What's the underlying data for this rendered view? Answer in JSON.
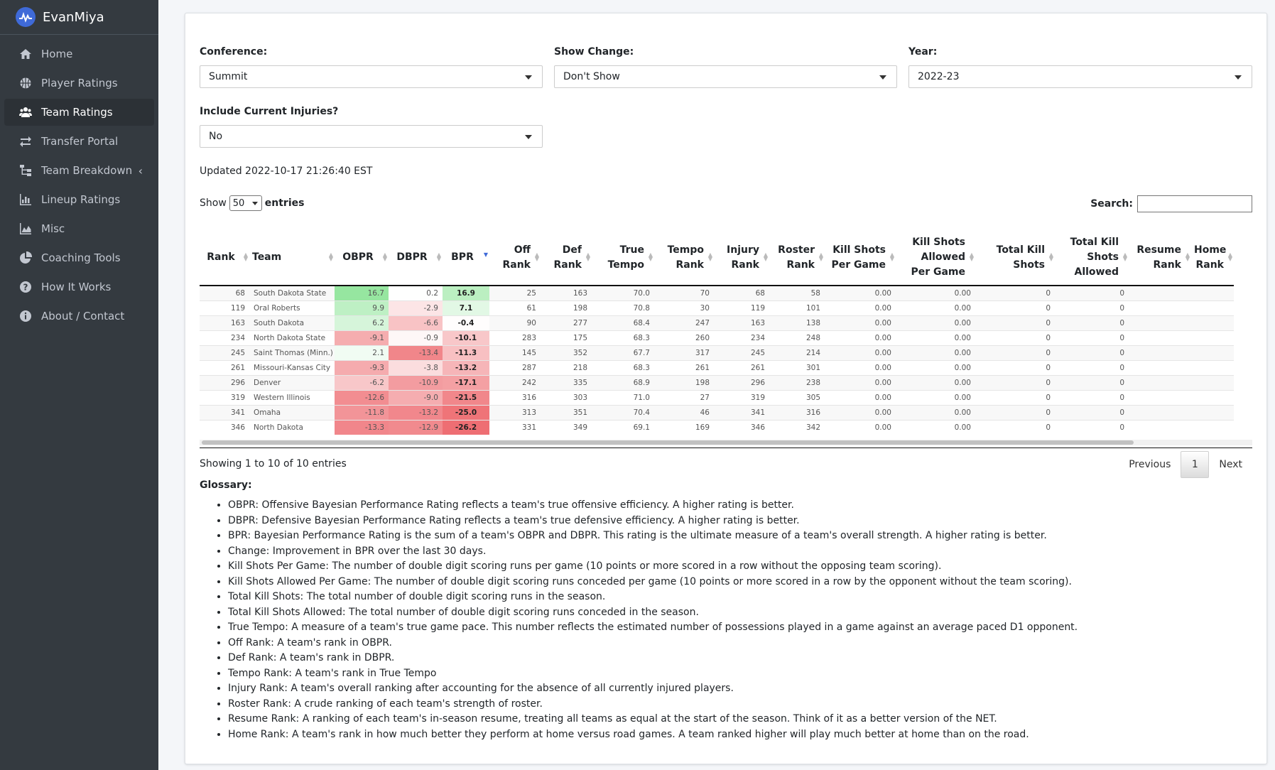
{
  "brand": {
    "name": "EvanMiya"
  },
  "sidebar": {
    "items": [
      {
        "label": "Home",
        "icon": "home-icon",
        "active": false
      },
      {
        "label": "Player Ratings",
        "icon": "basketball-icon",
        "active": false
      },
      {
        "label": "Team Ratings",
        "icon": "users-icon",
        "active": true
      },
      {
        "label": "Transfer Portal",
        "icon": "exchange-icon",
        "active": false
      },
      {
        "label": "Team Breakdown",
        "icon": "sitemap-icon",
        "active": false
      },
      {
        "label": "Lineup Ratings",
        "icon": "bar-chart-icon",
        "active": false
      },
      {
        "label": "Misc",
        "icon": "area-chart-icon",
        "active": false
      },
      {
        "label": "Coaching Tools",
        "icon": "pie-chart-icon",
        "active": false
      },
      {
        "label": "How It Works",
        "icon": "question-circle-icon",
        "active": false
      },
      {
        "label": "About / Contact",
        "icon": "info-circle-icon",
        "active": false
      }
    ]
  },
  "filters": {
    "conference": {
      "label": "Conference:",
      "value": "Summit"
    },
    "show_change": {
      "label": "Show Change:",
      "value": "Don't Show"
    },
    "year": {
      "label": "Year:",
      "value": "2022-23"
    },
    "injuries": {
      "label": "Include Current Injuries?",
      "value": "No"
    }
  },
  "updated": "Updated 2022-10-17 21:26:40 EST",
  "table_controls": {
    "show_label": "Show",
    "entries_value": "50",
    "entries_label": "entries",
    "search_label": "Search:"
  },
  "table": {
    "columns": [
      "Rank",
      "Team",
      "OBPR",
      "DBPR",
      "BPR",
      "Off Rank",
      "Def Rank",
      "True Tempo",
      "Tempo Rank",
      "Injury Rank",
      "Roster Rank",
      "Kill Shots Per Game",
      "Kill Shots Allowed Per Game",
      "Total Kill Shots",
      "Total Kill Shots Allowed",
      "Resume Rank",
      "Home Rank"
    ],
    "rows": [
      [
        "68",
        "South Dakota State",
        "16.7",
        "0.2",
        "16.9",
        "25",
        "163",
        "70.0",
        "70",
        "68",
        "58",
        "0.00",
        "0.00",
        "0",
        "0",
        "",
        ""
      ],
      [
        "119",
        "Oral Roberts",
        "9.9",
        "-2.9",
        "7.1",
        "61",
        "198",
        "70.8",
        "30",
        "119",
        "101",
        "0.00",
        "0.00",
        "0",
        "0",
        "",
        ""
      ],
      [
        "163",
        "South Dakota",
        "6.2",
        "-6.6",
        "-0.4",
        "90",
        "277",
        "68.4",
        "247",
        "163",
        "138",
        "0.00",
        "0.00",
        "0",
        "0",
        "",
        ""
      ],
      [
        "234",
        "North Dakota State",
        "-9.1",
        "-0.9",
        "-10.1",
        "283",
        "175",
        "68.3",
        "260",
        "234",
        "248",
        "0.00",
        "0.00",
        "0",
        "0",
        "",
        ""
      ],
      [
        "245",
        "Saint Thomas (Minn.)",
        "2.1",
        "-13.4",
        "-11.3",
        "145",
        "352",
        "67.7",
        "317",
        "245",
        "214",
        "0.00",
        "0.00",
        "0",
        "0",
        "",
        ""
      ],
      [
        "261",
        "Missouri-Kansas City",
        "-9.3",
        "-3.8",
        "-13.2",
        "287",
        "218",
        "68.3",
        "261",
        "261",
        "301",
        "0.00",
        "0.00",
        "0",
        "0",
        "",
        ""
      ],
      [
        "296",
        "Denver",
        "-6.2",
        "-10.9",
        "-17.1",
        "242",
        "335",
        "68.9",
        "198",
        "296",
        "238",
        "0.00",
        "0.00",
        "0",
        "0",
        "",
        ""
      ],
      [
        "319",
        "Western Illinois",
        "-12.6",
        "-9.0",
        "-21.5",
        "316",
        "303",
        "71.0",
        "27",
        "319",
        "305",
        "0.00",
        "0.00",
        "0",
        "0",
        "",
        ""
      ],
      [
        "341",
        "Omaha",
        "-11.8",
        "-13.2",
        "-25.0",
        "313",
        "351",
        "70.4",
        "46",
        "341",
        "316",
        "0.00",
        "0.00",
        "0",
        "0",
        "",
        ""
      ],
      [
        "346",
        "North Dakota",
        "-13.3",
        "-12.9",
        "-26.2",
        "331",
        "349",
        "69.1",
        "169",
        "346",
        "342",
        "0.00",
        "0.00",
        "0",
        "0",
        "",
        ""
      ]
    ]
  },
  "info": "Showing 1 to 10 of 10 entries",
  "pagination": {
    "previous": "Previous",
    "current": "1",
    "next": "Next"
  },
  "glossary": {
    "title": "Glossary:",
    "items": [
      "OBPR: Offensive Bayesian Performance Rating reflects a team's true offensive efficiency. A higher rating is better.",
      "DBPR: Defensive Bayesian Performance Rating reflects a team's true defensive efficiency. A higher rating is better.",
      "BPR: Bayesian Performance Rating is the sum of a team's OBPR and DBPR. This rating is the ultimate measure of a team's overall strength. A higher rating is better.",
      "Change: Improvement in BPR over the last 30 days.",
      "Kill Shots Per Game: The number of double digit scoring runs per game (10 points or more scored in a row without the opposing team scoring).",
      "Kill Shots Allowed Per Game: The number of double digit scoring runs conceded per game (10 points or more scored in a row by the opponent without the team scoring).",
      "Total Kill Shots: The total number of double digit scoring runs in the season.",
      "Total Kill Shots Allowed: The total number of double digit scoring runs conceded in the season.",
      "True Tempo: A measure of a team's true game pace. This number reflects the estimated number of possessions played in a game against an average paced D1 opponent.",
      "Off Rank: A team's rank in OBPR.",
      "Def Rank: A team's rank in DBPR.",
      "Tempo Rank: A team's rank in True Tempo",
      "Injury Rank: A team's overall ranking after accounting for the absence of all currently injured players.",
      "Roster Rank: A crude ranking of each team's strength of roster.",
      "Resume Rank: A ranking of each team's in-season resume, treating all teams as equal at the start of the season. Think of it as a better version of the NET.",
      "Home Rank: A team's rank in how much better they perform at home versus road games. A team ranked higher will play much better at home than on the road."
    ]
  },
  "colors": {
    "sidebar_bg": "#343a40",
    "accent": "#3f6ad8",
    "positive": "#2ecc71",
    "negative": "#e74c3c"
  }
}
